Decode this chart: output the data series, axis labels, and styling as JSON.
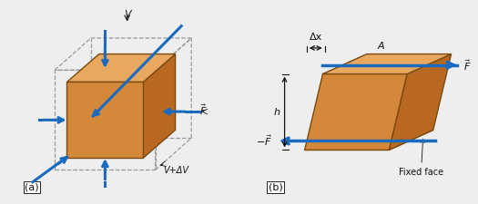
{
  "bg_color": "#eeeeee",
  "panel_bg": "#ffffff",
  "box_face_front": "#d4883a",
  "box_face_top": "#e8a860",
  "box_face_right": "#b86820",
  "box_edge_color": "#7a4a10",
  "dashed_color": "#999999",
  "arrow_color": "#1a6bbf",
  "text_color": "#111111",
  "label_a": "(a)",
  "label_b": "(b)",
  "F_label": "$\\vec{F}$",
  "negF_label": "$-\\vec{F}$",
  "V_label": "V",
  "VdV_label": "V+ΔV",
  "Dx_label": "Δx",
  "A_label": "A",
  "h_label": "h",
  "fixed_face_label": "Fixed face"
}
